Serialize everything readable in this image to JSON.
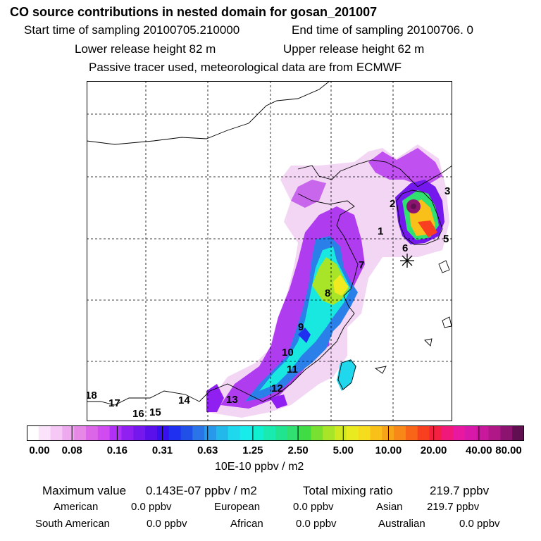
{
  "header": {
    "title": "CO  source contributions in nested domain for gosan_201007",
    "start_label": "Start time of sampling 20100705.210000",
    "end_label": "End time of sampling 20100706.     0",
    "lower_label": "Lower release height   82 m",
    "upper_label": "Upper release height   62 m",
    "tracer_note": "Passive tracer used, meteorological data are from ECMWF"
  },
  "map": {
    "receptor_marker": "asterisk-icon",
    "region_labels": [
      "1",
      "2",
      "3",
      "5",
      "6",
      "7",
      "8",
      "9",
      "10",
      "11",
      "12",
      "13",
      "14",
      "15",
      "16",
      "17",
      "18"
    ]
  },
  "colorbar": {
    "labels": [
      "0.00",
      "0.08",
      "0.16",
      "0.31",
      "0.63",
      "1.25",
      "2.50",
      "5.00",
      "10.00",
      "20.00",
      "40.00",
      "80.00"
    ],
    "colors": [
      "#ffffff",
      "#fbe3fb",
      "#f5c8f5",
      "#eeaaee",
      "#e689e6",
      "#dc66e8",
      "#d04cf0",
      "#b030f5",
      "#9020f2",
      "#7418ee",
      "#5a10ea",
      "#3810ee",
      "#2030f0",
      "#2050e8",
      "#2a74e8",
      "#2898ea",
      "#22b8ea",
      "#20d8ee",
      "#18ecea",
      "#10f0d0",
      "#18eab0",
      "#20e490",
      "#30e070",
      "#40dc44",
      "#78e030",
      "#a8e428",
      "#d0e820",
      "#eaea20",
      "#f6dc1c",
      "#f8c018",
      "#f8a418",
      "#f88818",
      "#f86418",
      "#f84020",
      "#f42040",
      "#f01878",
      "#e818a0",
      "#d818a8",
      "#c8189c",
      "#b01888",
      "#8c1470",
      "#601050"
    ],
    "units": "10E-10 ppbv / m2"
  },
  "summary": {
    "max_label": "Maximum value",
    "max_value": "0.143E-07 ppbv / m2",
    "total_label": "Total mixing ratio",
    "total_value": "219.7 ppbv",
    "contributions": [
      {
        "name": "American",
        "value": "0.0 ppbv"
      },
      {
        "name": "European",
        "value": "0.0 ppbv"
      },
      {
        "name": "Asian",
        "value": "219.7 ppbv"
      },
      {
        "name": "South American",
        "value": "0.0 ppbv"
      },
      {
        "name": "African",
        "value": "0.0 ppbv"
      },
      {
        "name": "Australian",
        "value": "0.0 ppbv"
      }
    ]
  }
}
